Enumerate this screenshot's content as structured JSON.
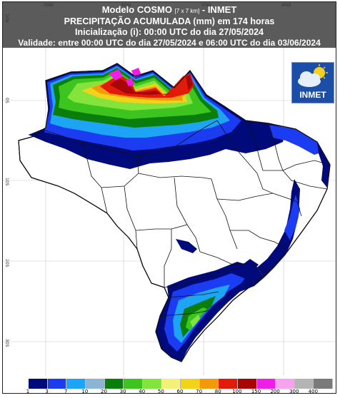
{
  "header": {
    "line1_main": "Modelo COSMO",
    "line1_res": "[7 x 7 km]",
    "line1_suffix": "- INMET",
    "line2": "PRECIPITAÇÃO ACUMULADA (mm) em 174 horas",
    "line3": "Inicialização (i): 00:00 UTC do dia 27/05/2024",
    "line4": "Validade: entre 00:00 UTC do dia 27/05/2024 e 06:00 UTC do dia 03/06/2024"
  },
  "grid_labels": {
    "lon": [
      "70W",
      "60W",
      "50W",
      "40W"
    ],
    "lat": [
      "10N",
      "0S",
      "10S",
      "20S",
      "30S"
    ]
  },
  "logo": {
    "text": "INMET",
    "icon": "sun-cloud-icon"
  },
  "legend": {
    "labels": [
      "1",
      "3",
      "7",
      "10",
      "20",
      "30",
      "40",
      "50",
      "60",
      "70",
      "80",
      "100",
      "150",
      "200",
      "300",
      "400"
    ],
    "colors": [
      "#010a7a",
      "#1c3cf2",
      "#1ea4f4",
      "#8cb4d4",
      "#0a7e0a",
      "#3dc41e",
      "#84e43c",
      "#f2f27a",
      "#f2d21a",
      "#f29a0a",
      "#e21a0a",
      "#a80606",
      "#ee1ee6",
      "#f6a2ee",
      "#b4b4b4",
      "#7a7a7a"
    ]
  }
}
